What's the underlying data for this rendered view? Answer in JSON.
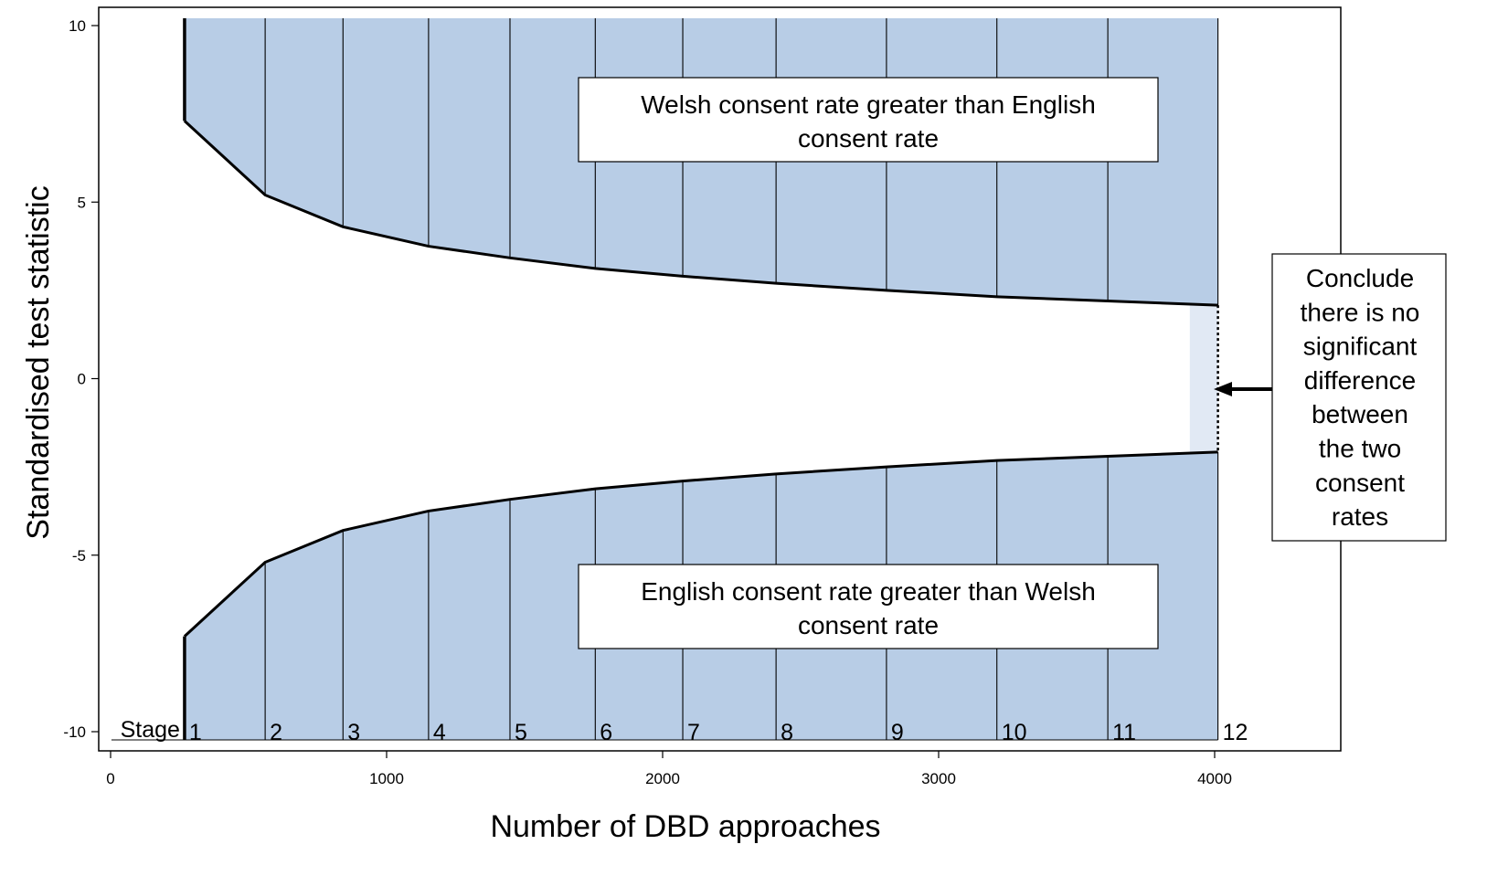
{
  "chart_data": {
    "type": "area",
    "xlabel": "Number of DBD approaches",
    "ylabel": "Standardised test statistic",
    "xlim": [
      -40,
      4450
    ],
    "ylim": [
      -10.6,
      10.5
    ],
    "x_ticks": [
      0,
      1000,
      2000,
      3000,
      4000
    ],
    "y_ticks": [
      10,
      5,
      0,
      -5,
      -10
    ],
    "x_tick_labels": [
      "0",
      "1000",
      "2000",
      "3000",
      "4000"
    ],
    "y_tick_labels": [
      "10",
      "5",
      "0",
      "-5",
      "-10"
    ],
    "stage_prefix": "Stage",
    "stages": [
      {
        "label": "1",
        "x": 268,
        "upper": 7.3,
        "lower": -7.3
      },
      {
        "label": "2",
        "x": 560,
        "upper": 5.2,
        "lower": -5.2
      },
      {
        "label": "3",
        "x": 842,
        "upper": 4.3,
        "lower": -4.3
      },
      {
        "label": "4",
        "x": 1152,
        "upper": 3.75,
        "lower": -3.75
      },
      {
        "label": "5",
        "x": 1447,
        "upper": 3.42,
        "lower": -3.42
      },
      {
        "label": "6",
        "x": 1756,
        "upper": 3.12,
        "lower": -3.12
      },
      {
        "label": "7",
        "x": 2073,
        "upper": 2.9,
        "lower": -2.9
      },
      {
        "label": "8",
        "x": 2411,
        "upper": 2.7,
        "lower": -2.7
      },
      {
        "label": "9",
        "x": 2811,
        "upper": 2.5,
        "lower": -2.5
      },
      {
        "label": "10",
        "x": 3211,
        "upper": 2.32,
        "lower": -2.32
      },
      {
        "label": "11",
        "x": 3613,
        "upper": 2.2,
        "lower": -2.2
      },
      {
        "label": "12",
        "x": 4012,
        "upper": 2.08,
        "lower": -2.08
      }
    ],
    "no_difference_region": {
      "x_start": 3910,
      "x_end": 4012
    },
    "annotations": {
      "upper_region": [
        "Welsh consent rate greater than English",
        "consent rate"
      ],
      "lower_region": [
        "English consent rate greater than Welsh",
        "consent rate"
      ],
      "conclusion": [
        "Conclude",
        "there is no",
        "significant",
        "difference",
        "between",
        "the two",
        "consent",
        "rates"
      ]
    },
    "colors": {
      "region_fill": "#b8cde6",
      "no_difference_fill": "#e1e9f4",
      "boundary": "#000000"
    },
    "grid": false,
    "legend": "none"
  }
}
